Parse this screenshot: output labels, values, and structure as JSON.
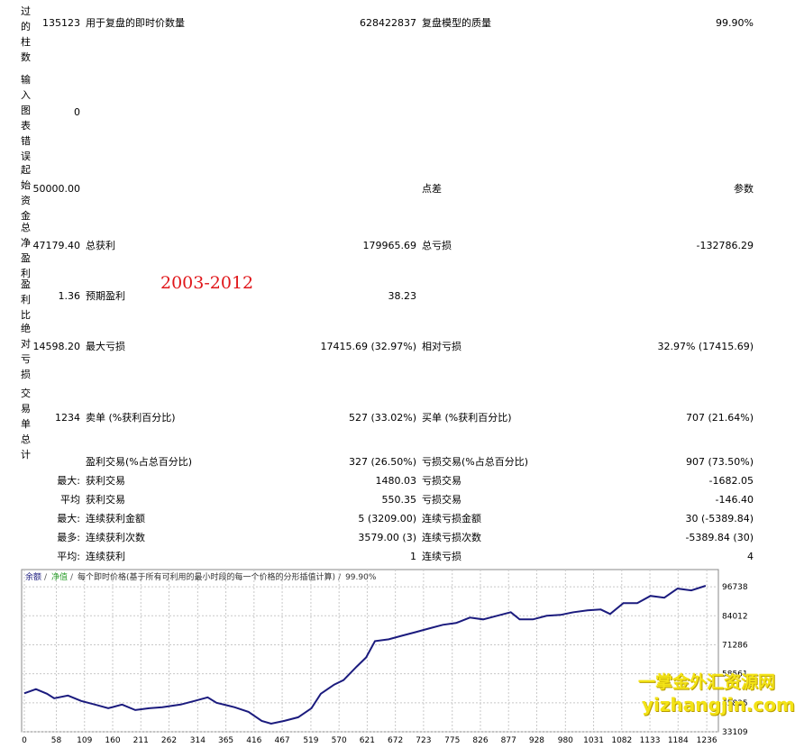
{
  "report": {
    "rows": [
      {
        "label": "测试过的柱数",
        "value": "135123",
        "label2": "用于复盘的即时价数量",
        "value2": "628422837",
        "label3": "复盘模型的质量",
        "value3": "99.90%"
      },
      {
        "label": "输入图表错误",
        "value": "0"
      },
      {
        "label": "起始资金",
        "value": "50000.00",
        "label3": "点差",
        "value3": "参数"
      },
      {
        "label": "总净盈利",
        "value": "47179.40",
        "label2": "总获利",
        "value2": "179965.69",
        "label3": "总亏损",
        "value3": "-132786.29"
      },
      {
        "label": "盈利比",
        "value": "1.36",
        "label2": "预期盈利",
        "value2": "38.23"
      },
      {
        "label": "绝对亏损",
        "value": "14598.20",
        "label2": "最大亏损",
        "value2": "17415.69 (32.97%)",
        "label3": "相对亏损",
        "value3": "32.97% (17415.69)"
      },
      {
        "label": "交易单总计",
        "value": "1234",
        "label2": "卖单 (%获利百分比)",
        "value2": "527 (33.02%)",
        "label3": "买单 (%获利百分比)",
        "value3": "707 (21.64%)"
      },
      {
        "label2": "盈利交易(%占总百分比)",
        "value2": "327 (26.50%)",
        "label3": "亏损交易(%占总百分比)",
        "value3": "907 (73.50%)"
      },
      {
        "value": "最大:",
        "label2": "获利交易",
        "value2": "1480.03",
        "label3": "亏损交易",
        "value3": "-1682.05"
      },
      {
        "value": "平均",
        "label2": "获利交易",
        "value2": "550.35",
        "label3": "亏损交易",
        "value3": "-146.40"
      },
      {
        "value": "最大:",
        "label2": "连续获利金额",
        "value2": "5 (3209.00)",
        "label3": "连续亏损金额",
        "value3": "30 (-5389.84)"
      },
      {
        "value": "最多:",
        "label2": "连续获利次数",
        "value2": "3579.00 (3)",
        "label3": "连续亏损次数",
        "value3": "-5389.84 (30)"
      },
      {
        "value": "平均:",
        "label2": "连续获利",
        "value2": "1",
        "label3": "连续亏损",
        "value3": "4"
      }
    ],
    "annotation": "2003-2012"
  },
  "watermark": {
    "name": "一掌金外汇资源网",
    "url": "yizhangjin.com"
  },
  "chart_data": {
    "type": "line",
    "legend": {
      "equity": "净值",
      "description": "每个即时价格(基于所有可利用的最小时段的每一个价格的分形插值计算)",
      "quality": "99.90%"
    },
    "x": [
      0,
      21,
      41,
      54,
      79,
      103,
      128,
      152,
      177,
      201,
      226,
      250,
      283,
      308,
      332,
      348,
      381,
      406,
      430,
      447,
      471,
      496,
      520,
      537,
      561,
      578,
      602,
      619,
      635,
      660,
      684,
      709,
      733,
      758,
      782,
      807,
      831,
      856,
      881,
      897,
      921,
      946,
      971,
      995,
      1020,
      1044,
      1061,
      1085,
      1110,
      1134,
      1159,
      1183,
      1208,
      1234
    ],
    "series": [
      {
        "name": "余额",
        "color": "#1b1b7e",
        "values": [
          50000,
          51800,
          49812,
          47824,
          49017,
          46631,
          45040,
          43449,
          45040,
          42654,
          43449,
          43847,
          45040,
          46631,
          48222,
          45835,
          43847,
          41858,
          37882,
          36688,
          37882,
          39472,
          43449,
          49812,
          53789,
          55778,
          61743,
          65720,
          72879,
          73674,
          75265,
          76856,
          78446,
          80037,
          80833,
          83219,
          82424,
          84015,
          85605,
          82424,
          82424,
          84015,
          84412,
          85605,
          86401,
          86798,
          84810,
          89582,
          89582,
          92764,
          91969,
          95946,
          95150,
          97179
        ]
      }
    ],
    "xlim": [
      0,
      1257
    ],
    "ylim": [
      33109,
      104300
    ],
    "xticks": [
      0,
      58,
      109,
      160,
      211,
      262,
      314,
      365,
      416,
      467,
      519,
      570,
      621,
      672,
      723,
      775,
      826,
      877,
      928,
      980,
      1031,
      1082,
      1133,
      1184,
      1236
    ],
    "yticks": [
      33109,
      45835,
      58561,
      71286,
      84012,
      96738
    ],
    "grid": true
  }
}
